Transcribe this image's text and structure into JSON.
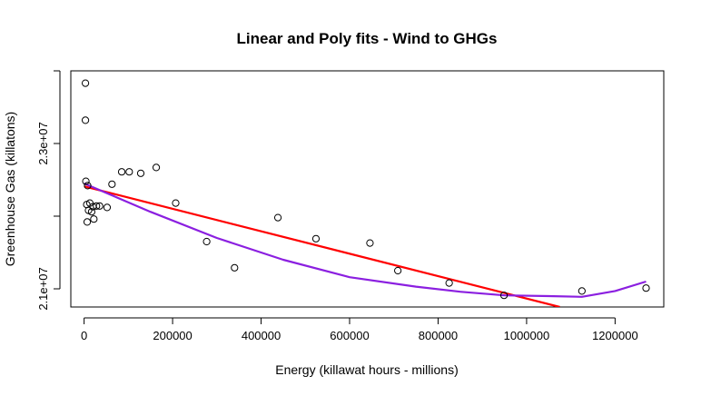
{
  "chart_data": {
    "type": "scatter",
    "title": "Linear and Poly fits - Wind to GHGs",
    "xlabel": "Energy (killawat hours - millions)",
    "ylabel": "Greenhouse Gas (killatons)",
    "xlim": [
      -30000,
      1310000
    ],
    "ylim": [
      20750000,
      24000000
    ],
    "xticks": [
      {
        "value": 0,
        "label": "0"
      },
      {
        "value": 200000,
        "label": "200000"
      },
      {
        "value": 400000,
        "label": "400000"
      },
      {
        "value": 600000,
        "label": "600000"
      },
      {
        "value": 800000,
        "label": "800000"
      },
      {
        "value": 1000000,
        "label": "1000000"
      },
      {
        "value": 1200000,
        "label": "1200000"
      }
    ],
    "yticks": [
      {
        "value": 21000000,
        "label": "2.1e+07"
      },
      {
        "value": 23000000,
        "label": "2.3e+07"
      }
    ],
    "yticks_minor": [
      22000000,
      24000000
    ],
    "grid": false,
    "points": [
      {
        "x": 3000,
        "y": 23830000
      },
      {
        "x": 3000,
        "y": 23320000
      },
      {
        "x": 4000,
        "y": 22480000
      },
      {
        "x": 8000,
        "y": 22420000
      },
      {
        "x": 6000,
        "y": 22160000
      },
      {
        "x": 13000,
        "y": 22180000
      },
      {
        "x": 20000,
        "y": 22130000
      },
      {
        "x": 28000,
        "y": 22140000
      },
      {
        "x": 35000,
        "y": 22140000
      },
      {
        "x": 10000,
        "y": 22080000
      },
      {
        "x": 17000,
        "y": 22060000
      },
      {
        "x": 22000,
        "y": 21960000
      },
      {
        "x": 7000,
        "y": 21920000
      },
      {
        "x": 52000,
        "y": 22120000
      },
      {
        "x": 63000,
        "y": 22440000
      },
      {
        "x": 85000,
        "y": 22610000
      },
      {
        "x": 102000,
        "y": 22610000
      },
      {
        "x": 128000,
        "y": 22590000
      },
      {
        "x": 163000,
        "y": 22670000
      },
      {
        "x": 207000,
        "y": 22180000
      },
      {
        "x": 277000,
        "y": 21650000
      },
      {
        "x": 340000,
        "y": 21290000
      },
      {
        "x": 438000,
        "y": 21980000
      },
      {
        "x": 524000,
        "y": 21690000
      },
      {
        "x": 646000,
        "y": 21630000
      },
      {
        "x": 709000,
        "y": 21250000
      },
      {
        "x": 825000,
        "y": 21080000
      },
      {
        "x": 949000,
        "y": 20910000
      },
      {
        "x": 1125000,
        "y": 20970000
      },
      {
        "x": 1270000,
        "y": 21010000
      }
    ],
    "series": [
      {
        "type": "line",
        "color": "#ff0000",
        "x": [
          0,
          1075000
        ],
        "y": [
          22410000,
          20750000
        ]
      },
      {
        "type": "line",
        "color": "#8b1fe0",
        "x": [
          0,
          50000,
          150000,
          300000,
          450000,
          600000,
          750000,
          850000,
          950000,
          1050000,
          1125000,
          1200000,
          1270000
        ],
        "y": [
          22450000,
          22320000,
          22060000,
          21700000,
          21400000,
          21160000,
          21030000,
          20960000,
          20910000,
          20900000,
          20890000,
          20970000,
          21100000
        ]
      }
    ]
  }
}
